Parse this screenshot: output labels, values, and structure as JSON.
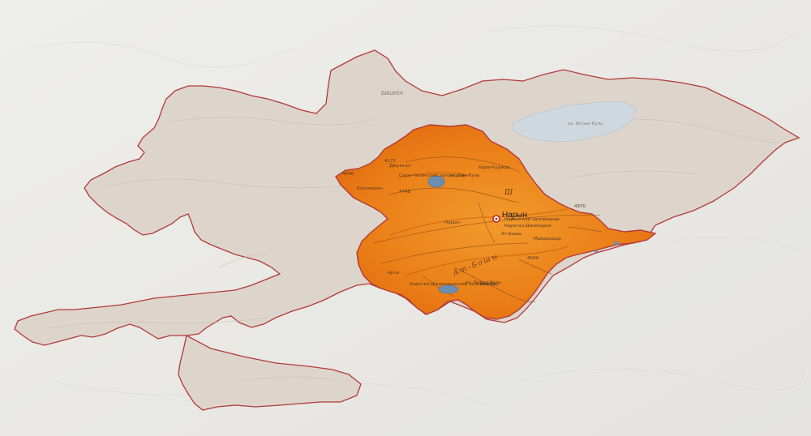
{
  "map": {
    "highlighted_city": "Нарын",
    "capital_label": "БИШКЕК",
    "lakes": {
      "issyk_kul": "оз. Иссык-Куль",
      "son_kul": "оз. Сон-Куль",
      "chatyr_kul": "оз. Чатыр-Куль"
    },
    "reserves": {
      "naryn": "Нарынский заповедник",
      "karatal": "Каратал-Джапырык",
      "sarychat": "Сары-Челекский заповедник",
      "chatkal": "Каратал-Джапырыкский заповедник"
    },
    "rivers": {
      "naryn": "Нарын",
      "at_bashy": "Ат-Башы",
      "kokemeren": "Кокомерен",
      "djumgal": "Джумгал",
      "kara_kujur": "Кара-Куджур",
      "arpa": "Арпа",
      "mayda": "Майдаадыр",
      "kek_suu": "Кек-Суу"
    },
    "peaks": [
      "4048",
      "4173",
      "4748",
      "4970",
      "4044"
    ],
    "ranges": {
      "at_bashy": "Ат-Башы",
      "tien_shan": "Ш"
    },
    "colors": {
      "background": "#e9e8e5",
      "country_fill": "#ddd5cb",
      "region_fill": "#ee8a1a",
      "border": "#b23a3a",
      "lake": "#cfd8df"
    }
  }
}
